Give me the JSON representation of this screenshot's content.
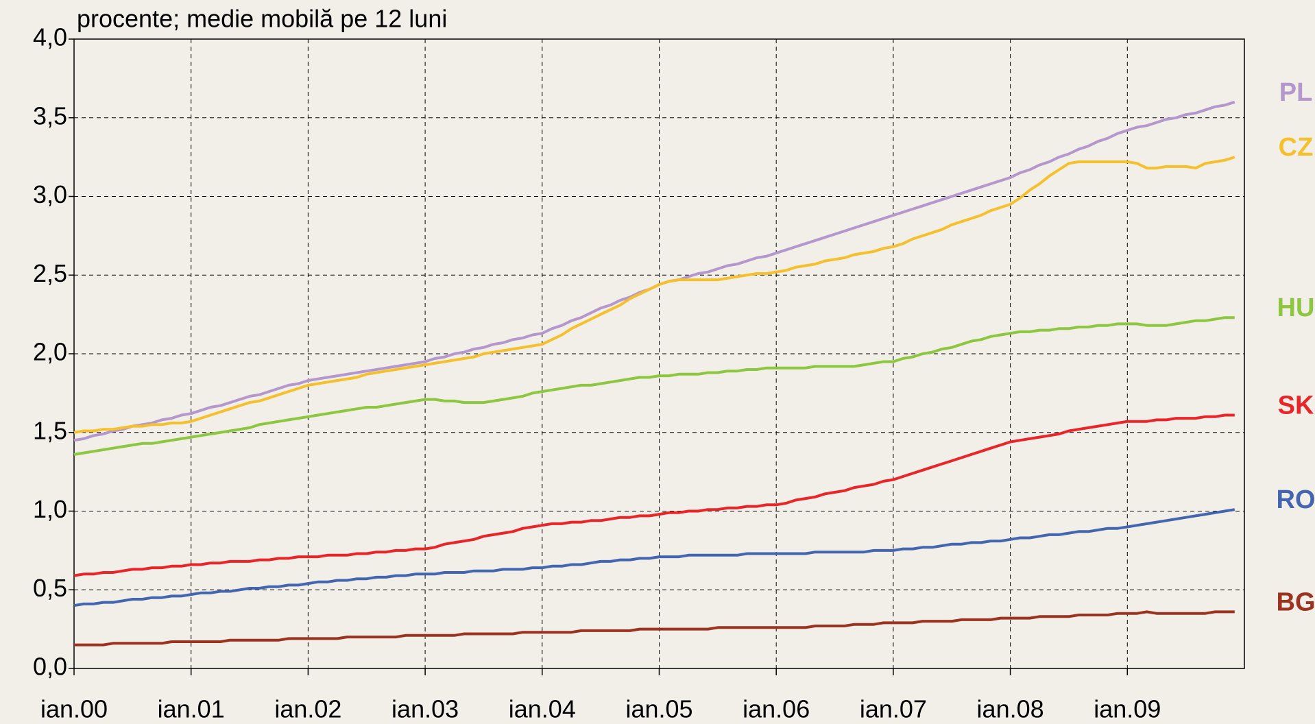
{
  "chart_data": {
    "type": "line",
    "title": "procente; medie mobilă pe 12 luni",
    "categories": [
      "ian.00",
      null,
      null,
      null,
      null,
      null,
      null,
      null,
      null,
      null,
      null,
      null,
      "ian.01",
      null,
      null,
      null,
      null,
      null,
      null,
      null,
      null,
      null,
      null,
      null,
      "ian.02",
      null,
      null,
      null,
      null,
      null,
      null,
      null,
      null,
      null,
      null,
      null,
      "ian.03",
      null,
      null,
      null,
      null,
      null,
      null,
      null,
      null,
      null,
      null,
      null,
      "ian.04",
      null,
      null,
      null,
      null,
      null,
      null,
      null,
      null,
      null,
      null,
      null,
      "ian.05",
      null,
      null,
      null,
      null,
      null,
      null,
      null,
      null,
      null,
      null,
      null,
      "ian.06",
      null,
      null,
      null,
      null,
      null,
      null,
      null,
      null,
      null,
      null,
      null,
      "ian.07",
      null,
      null,
      null,
      null,
      null,
      null,
      null,
      null,
      null,
      null,
      null,
      "ian.08",
      null,
      null,
      null,
      null,
      null,
      null,
      null,
      null,
      null,
      null,
      null,
      "ian.09",
      null,
      null,
      null,
      null,
      null,
      null,
      null,
      null,
      null,
      null,
      null
    ],
    "ylim": [
      0,
      4
    ],
    "yticks": [
      {
        "value": 0,
        "label": "0,0"
      },
      {
        "value": 0.5,
        "label": "0,5"
      },
      {
        "value": 1,
        "label": "1,0"
      },
      {
        "value": 1.5,
        "label": "1,5"
      },
      {
        "value": 2,
        "label": "2,0"
      },
      {
        "value": 2.5,
        "label": "2,5"
      },
      {
        "value": 3,
        "label": "3,0"
      },
      {
        "value": 3.5,
        "label": "3,5"
      },
      {
        "value": 4,
        "label": "4,0"
      }
    ],
    "grid": true,
    "series": [
      {
        "name": "PL",
        "color": "#b497cc",
        "values": [
          1.45,
          1.46,
          1.48,
          1.49,
          1.51,
          1.52,
          1.54,
          1.55,
          1.56,
          1.58,
          1.59,
          1.61,
          1.62,
          1.64,
          1.66,
          1.67,
          1.69,
          1.71,
          1.73,
          1.74,
          1.76,
          1.78,
          1.8,
          1.81,
          1.83,
          1.84,
          1.85,
          1.86,
          1.87,
          1.88,
          1.89,
          1.9,
          1.91,
          1.92,
          1.93,
          1.94,
          1.95,
          1.97,
          1.98,
          2.0,
          2.01,
          2.03,
          2.04,
          2.06,
          2.07,
          2.09,
          2.1,
          2.12,
          2.13,
          2.16,
          2.18,
          2.21,
          2.23,
          2.26,
          2.29,
          2.31,
          2.34,
          2.36,
          2.39,
          2.41,
          2.44,
          2.46,
          2.47,
          2.49,
          2.51,
          2.52,
          2.54,
          2.56,
          2.57,
          2.59,
          2.61,
          2.62,
          2.64,
          2.66,
          2.68,
          2.7,
          2.72,
          2.74,
          2.76,
          2.78,
          2.8,
          2.82,
          2.84,
          2.86,
          2.88,
          2.9,
          2.92,
          2.94,
          2.96,
          2.98,
          3.0,
          3.02,
          3.04,
          3.06,
          3.08,
          3.1,
          3.12,
          3.15,
          3.17,
          3.2,
          3.22,
          3.25,
          3.27,
          3.3,
          3.32,
          3.35,
          3.37,
          3.4,
          3.42,
          3.44,
          3.45,
          3.47,
          3.49,
          3.5,
          3.52,
          3.53,
          3.55,
          3.57,
          3.58,
          3.6
        ]
      },
      {
        "name": "CZ",
        "color": "#f5c02e",
        "values": [
          1.5,
          1.51,
          1.51,
          1.52,
          1.52,
          1.53,
          1.54,
          1.54,
          1.55,
          1.55,
          1.56,
          1.56,
          1.57,
          1.59,
          1.61,
          1.63,
          1.65,
          1.67,
          1.69,
          1.7,
          1.72,
          1.74,
          1.76,
          1.78,
          1.8,
          1.81,
          1.82,
          1.83,
          1.84,
          1.85,
          1.87,
          1.88,
          1.89,
          1.9,
          1.91,
          1.92,
          1.93,
          1.94,
          1.95,
          1.96,
          1.97,
          1.98,
          2.0,
          2.01,
          2.02,
          2.03,
          2.04,
          2.05,
          2.06,
          2.09,
          2.12,
          2.16,
          2.19,
          2.22,
          2.25,
          2.28,
          2.31,
          2.35,
          2.38,
          2.41,
          2.44,
          2.46,
          2.47,
          2.47,
          2.47,
          2.47,
          2.47,
          2.48,
          2.49,
          2.5,
          2.51,
          2.51,
          2.52,
          2.53,
          2.55,
          2.56,
          2.57,
          2.59,
          2.6,
          2.61,
          2.63,
          2.64,
          2.65,
          2.67,
          2.68,
          2.7,
          2.73,
          2.75,
          2.77,
          2.79,
          2.82,
          2.84,
          2.86,
          2.88,
          2.91,
          2.93,
          2.95,
          2.99,
          3.04,
          3.08,
          3.13,
          3.17,
          3.21,
          3.22,
          3.22,
          3.22,
          3.22,
          3.22,
          3.22,
          3.21,
          3.18,
          3.18,
          3.19,
          3.19,
          3.19,
          3.18,
          3.21,
          3.22,
          3.23,
          3.25
        ]
      },
      {
        "name": "HU",
        "color": "#8dc63f",
        "values": [
          1.36,
          1.37,
          1.38,
          1.39,
          1.4,
          1.41,
          1.42,
          1.43,
          1.43,
          1.44,
          1.45,
          1.46,
          1.47,
          1.48,
          1.49,
          1.5,
          1.51,
          1.52,
          1.53,
          1.55,
          1.56,
          1.57,
          1.58,
          1.59,
          1.6,
          1.61,
          1.62,
          1.63,
          1.64,
          1.65,
          1.66,
          1.66,
          1.67,
          1.68,
          1.69,
          1.7,
          1.71,
          1.71,
          1.7,
          1.7,
          1.69,
          1.69,
          1.69,
          1.7,
          1.71,
          1.72,
          1.73,
          1.75,
          1.76,
          1.77,
          1.78,
          1.79,
          1.8,
          1.8,
          1.81,
          1.82,
          1.83,
          1.84,
          1.85,
          1.85,
          1.86,
          1.86,
          1.87,
          1.87,
          1.87,
          1.88,
          1.88,
          1.89,
          1.89,
          1.9,
          1.9,
          1.91,
          1.91,
          1.91,
          1.91,
          1.91,
          1.92,
          1.92,
          1.92,
          1.92,
          1.92,
          1.93,
          1.94,
          1.95,
          1.95,
          1.97,
          1.98,
          2.0,
          2.01,
          2.03,
          2.04,
          2.06,
          2.08,
          2.09,
          2.11,
          2.12,
          2.13,
          2.14,
          2.14,
          2.15,
          2.15,
          2.16,
          2.16,
          2.17,
          2.17,
          2.18,
          2.18,
          2.19,
          2.19,
          2.19,
          2.18,
          2.18,
          2.18,
          2.19,
          2.2,
          2.21,
          2.21,
          2.22,
          2.23,
          2.23
        ]
      },
      {
        "name": "SK",
        "color": "#e8262a",
        "values": [
          0.59,
          0.6,
          0.6,
          0.61,
          0.61,
          0.62,
          0.63,
          0.63,
          0.64,
          0.64,
          0.65,
          0.65,
          0.66,
          0.66,
          0.67,
          0.67,
          0.68,
          0.68,
          0.68,
          0.69,
          0.69,
          0.7,
          0.7,
          0.71,
          0.71,
          0.71,
          0.72,
          0.72,
          0.72,
          0.73,
          0.73,
          0.74,
          0.74,
          0.75,
          0.75,
          0.76,
          0.76,
          0.77,
          0.79,
          0.8,
          0.81,
          0.82,
          0.84,
          0.85,
          0.86,
          0.87,
          0.89,
          0.9,
          0.91,
          0.92,
          0.92,
          0.93,
          0.93,
          0.94,
          0.94,
          0.95,
          0.96,
          0.96,
          0.97,
          0.97,
          0.98,
          0.99,
          0.99,
          1.0,
          1.0,
          1.01,
          1.01,
          1.02,
          1.02,
          1.03,
          1.03,
          1.04,
          1.04,
          1.05,
          1.07,
          1.08,
          1.09,
          1.11,
          1.12,
          1.13,
          1.15,
          1.16,
          1.17,
          1.19,
          1.2,
          1.22,
          1.24,
          1.26,
          1.28,
          1.3,
          1.32,
          1.34,
          1.36,
          1.38,
          1.4,
          1.42,
          1.44,
          1.45,
          1.46,
          1.47,
          1.48,
          1.49,
          1.51,
          1.52,
          1.53,
          1.54,
          1.55,
          1.56,
          1.57,
          1.57,
          1.57,
          1.58,
          1.58,
          1.59,
          1.59,
          1.59,
          1.6,
          1.6,
          1.61,
          1.61
        ]
      },
      {
        "name": "RO",
        "color": "#4466b0",
        "values": [
          0.4,
          0.41,
          0.41,
          0.42,
          0.42,
          0.43,
          0.44,
          0.44,
          0.45,
          0.45,
          0.46,
          0.46,
          0.47,
          0.48,
          0.48,
          0.49,
          0.49,
          0.5,
          0.51,
          0.51,
          0.52,
          0.52,
          0.53,
          0.53,
          0.54,
          0.55,
          0.55,
          0.56,
          0.56,
          0.57,
          0.57,
          0.58,
          0.58,
          0.59,
          0.59,
          0.6,
          0.6,
          0.6,
          0.61,
          0.61,
          0.61,
          0.62,
          0.62,
          0.62,
          0.63,
          0.63,
          0.63,
          0.64,
          0.64,
          0.65,
          0.65,
          0.66,
          0.66,
          0.67,
          0.68,
          0.68,
          0.69,
          0.69,
          0.7,
          0.7,
          0.71,
          0.71,
          0.71,
          0.72,
          0.72,
          0.72,
          0.72,
          0.72,
          0.72,
          0.73,
          0.73,
          0.73,
          0.73,
          0.73,
          0.73,
          0.73,
          0.74,
          0.74,
          0.74,
          0.74,
          0.74,
          0.74,
          0.75,
          0.75,
          0.75,
          0.76,
          0.76,
          0.77,
          0.77,
          0.78,
          0.79,
          0.79,
          0.8,
          0.8,
          0.81,
          0.81,
          0.82,
          0.83,
          0.83,
          0.84,
          0.85,
          0.85,
          0.86,
          0.87,
          0.87,
          0.88,
          0.89,
          0.89,
          0.9,
          0.91,
          0.92,
          0.93,
          0.94,
          0.95,
          0.96,
          0.97,
          0.98,
          0.99,
          1.0,
          1.01
        ]
      },
      {
        "name": "BG",
        "color": "#9b3320",
        "values": [
          0.15,
          0.15,
          0.15,
          0.15,
          0.16,
          0.16,
          0.16,
          0.16,
          0.16,
          0.16,
          0.17,
          0.17,
          0.17,
          0.17,
          0.17,
          0.17,
          0.18,
          0.18,
          0.18,
          0.18,
          0.18,
          0.18,
          0.19,
          0.19,
          0.19,
          0.19,
          0.19,
          0.19,
          0.2,
          0.2,
          0.2,
          0.2,
          0.2,
          0.2,
          0.21,
          0.21,
          0.21,
          0.21,
          0.21,
          0.21,
          0.22,
          0.22,
          0.22,
          0.22,
          0.22,
          0.22,
          0.23,
          0.23,
          0.23,
          0.23,
          0.23,
          0.23,
          0.24,
          0.24,
          0.24,
          0.24,
          0.24,
          0.24,
          0.25,
          0.25,
          0.25,
          0.25,
          0.25,
          0.25,
          0.25,
          0.25,
          0.26,
          0.26,
          0.26,
          0.26,
          0.26,
          0.26,
          0.26,
          0.26,
          0.26,
          0.26,
          0.27,
          0.27,
          0.27,
          0.27,
          0.28,
          0.28,
          0.28,
          0.29,
          0.29,
          0.29,
          0.29,
          0.3,
          0.3,
          0.3,
          0.3,
          0.31,
          0.31,
          0.31,
          0.31,
          0.32,
          0.32,
          0.32,
          0.32,
          0.33,
          0.33,
          0.33,
          0.33,
          0.34,
          0.34,
          0.34,
          0.34,
          0.35,
          0.35,
          0.35,
          0.36,
          0.35,
          0.35,
          0.35,
          0.35,
          0.35,
          0.35,
          0.36,
          0.36,
          0.36
        ]
      }
    ]
  }
}
